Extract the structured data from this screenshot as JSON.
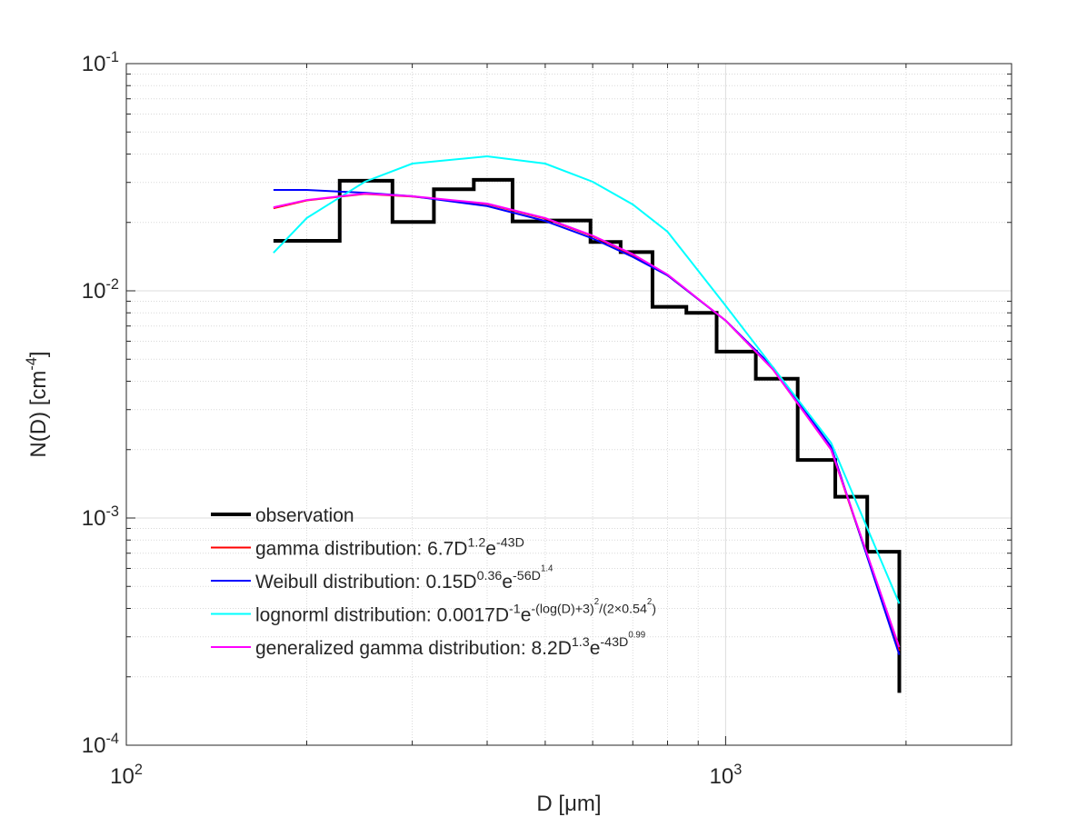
{
  "chart_data": {
    "type": "line",
    "xlabel": "D [μm]",
    "ylabel": "N(D) [cm^{-4}]",
    "xscale": "log",
    "yscale": "log",
    "xlim": [
      100,
      3000
    ],
    "ylim": [
      0.0001,
      0.1
    ],
    "xticks": [
      {
        "value": 100,
        "label": "10^{2}"
      },
      {
        "value": 1000,
        "label": "10^{3}"
      }
    ],
    "yticks": [
      {
        "value": 0.0001,
        "label": "10^{-4}"
      },
      {
        "value": 0.001,
        "label": "10^{-3}"
      },
      {
        "value": 0.01,
        "label": "10^{-2}"
      },
      {
        "value": 0.1,
        "label": "10^{-1}"
      }
    ],
    "grid": true,
    "minor_grid": true,
    "legend": "lower left",
    "series": [
      {
        "name": "observation",
        "color": "#000000",
        "style": "step",
        "x": [
          176,
          227,
          278,
          326,
          380,
          441,
          511,
          595,
          668,
          755,
          860,
          966,
          1123,
          1319,
          1524,
          1723,
          1949
        ],
        "values": [
          0.0166,
          0.0305,
          0.0201,
          0.028,
          0.0308,
          0.0202,
          0.0204,
          0.0164,
          0.0148,
          0.0085,
          0.008,
          0.0054,
          0.0041,
          0.0018,
          0.00124,
          0.00071,
          0.00017
        ]
      },
      {
        "name": "gamma distribution: 6.7D^{1.2}e^{-43D}",
        "color": "#ff0000",
        "x": [
          176,
          200,
          250,
          300,
          400,
          500,
          600,
          700,
          800,
          1000,
          1200,
          1500,
          1949
        ],
        "values": [
          0.0231,
          0.025,
          0.0267,
          0.026,
          0.0241,
          0.0208,
          0.0174,
          0.0144,
          0.0117,
          0.0074,
          0.0045,
          0.002,
          0.00026
        ]
      },
      {
        "name": "Weibull distribution: 0.15D^{0.36}e^{-56D^{1.4}}",
        "color": "#0000ff",
        "x": [
          176,
          200,
          250,
          300,
          400,
          500,
          600,
          700,
          800,
          1000,
          1200,
          1500,
          1949
        ],
        "values": [
          0.0278,
          0.0278,
          0.027,
          0.0261,
          0.0236,
          0.0203,
          0.017,
          0.0141,
          0.0117,
          0.0074,
          0.0046,
          0.00206,
          0.00025
        ]
      },
      {
        "name": "lognorml distribution: 0.0017D^{-1}e^{-(log(D)+3)^{2}/(2×0.54^{2})}",
        "color": "#00ffff",
        "x": [
          176,
          200,
          250,
          300,
          400,
          500,
          600,
          700,
          800,
          1000,
          1200,
          1500,
          1949
        ],
        "values": [
          0.0147,
          0.0209,
          0.0302,
          0.0363,
          0.0391,
          0.0363,
          0.0302,
          0.024,
          0.0182,
          0.0086,
          0.0046,
          0.00214,
          0.00042
        ]
      },
      {
        "name": "generalized gamma distribution: 8.2D^{1.3}e^{-43D^{0.99}}",
        "color": "#ff00ff",
        "x": [
          176,
          200,
          250,
          300,
          400,
          500,
          600,
          700,
          800,
          1000,
          1200,
          1500,
          1949
        ],
        "values": [
          0.0233,
          0.0251,
          0.0268,
          0.0261,
          0.0242,
          0.0209,
          0.0175,
          0.0145,
          0.0118,
          0.0074,
          0.0045,
          0.002,
          0.00027
        ]
      }
    ]
  }
}
